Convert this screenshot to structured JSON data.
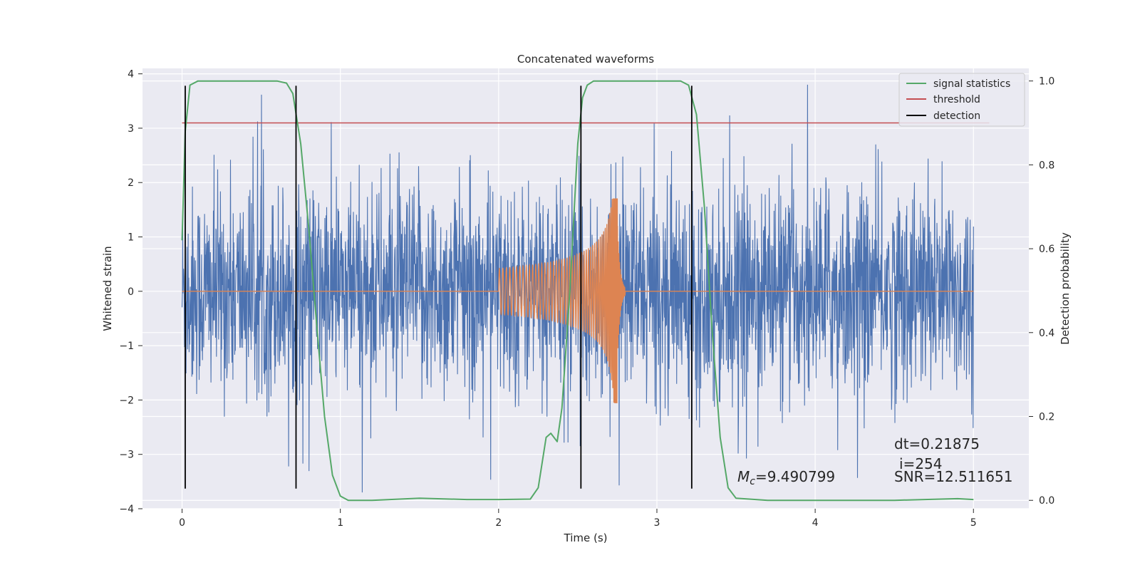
{
  "chart_data": {
    "type": "line",
    "title": "Concatenated waveforms",
    "xlabel": "Time (s)",
    "ylabel": "Whitened strain",
    "ylabel_right": "Detection probability",
    "xlim": [
      -0.25,
      5.35
    ],
    "ylim": [
      -4.0,
      4.1
    ],
    "ylim_right": [
      -0.02,
      1.03
    ],
    "x_ticks": [
      0,
      1,
      2,
      3,
      4,
      5
    ],
    "y_ticks": [
      -4,
      -3,
      -2,
      -1,
      0,
      1,
      2,
      3,
      4
    ],
    "y_ticks_right": [
      0.0,
      0.2,
      0.4,
      0.6,
      0.8,
      1.0
    ],
    "grid": true,
    "legend_placement": "top-right",
    "colors": {
      "strain": "#4c72b0",
      "template": "#dd8452",
      "signal_statistics": "#55a868",
      "threshold": "#c44e52",
      "detection": "#000000",
      "background": "#eaeaf2"
    },
    "series": [
      {
        "name": "signal statistics",
        "axis": "right",
        "x": [
          0.0,
          0.02,
          0.05,
          0.1,
          0.2,
          0.4,
          0.6,
          0.66,
          0.7,
          0.75,
          0.8,
          0.85,
          0.9,
          0.95,
          1.0,
          1.05,
          1.2,
          1.5,
          1.8,
          2.0,
          2.2,
          2.25,
          2.3,
          2.33,
          2.37,
          2.4,
          2.45,
          2.5,
          2.53,
          2.56,
          2.6,
          2.7,
          3.0,
          3.15,
          3.2,
          3.25,
          3.3,
          3.35,
          3.4,
          3.45,
          3.5,
          3.7,
          4.0,
          4.5,
          4.9,
          5.0
        ],
        "y": [
          0.62,
          0.88,
          0.99,
          1.0,
          1.0,
          1.0,
          1.0,
          0.995,
          0.97,
          0.85,
          0.65,
          0.42,
          0.2,
          0.06,
          0.01,
          0.0,
          0.0,
          0.005,
          0.002,
          0.002,
          0.003,
          0.03,
          0.15,
          0.16,
          0.14,
          0.22,
          0.5,
          0.85,
          0.96,
          0.99,
          1.0,
          1.0,
          1.0,
          1.0,
          0.99,
          0.92,
          0.7,
          0.4,
          0.15,
          0.03,
          0.005,
          0.0,
          0.0,
          0.0,
          0.004,
          0.002
        ]
      },
      {
        "name": "threshold",
        "axis": "right",
        "x": [
          0.0,
          5.1
        ],
        "y": [
          0.9,
          0.9
        ]
      },
      {
        "name": "detection",
        "axis": "left",
        "x_events": [
          0.02,
          0.72,
          2.52,
          3.22
        ],
        "y_range": [
          -3.63,
          3.78
        ]
      }
    ],
    "strain_noise": {
      "x_range": [
        0.0,
        5.0
      ],
      "y_range": [
        -3.7,
        3.8
      ]
    },
    "template_chirp": {
      "x_range": [
        2.0,
        2.8
      ],
      "merger_time": 2.75,
      "peak": 1.7,
      "trough": -2.05
    },
    "annotations": {
      "mc": "=9.490799",
      "mc_symbol": "M",
      "mc_subscript": "c",
      "dt": "dt=0.21875",
      "i": "i=254",
      "snr": "SNR=12.511651"
    }
  }
}
